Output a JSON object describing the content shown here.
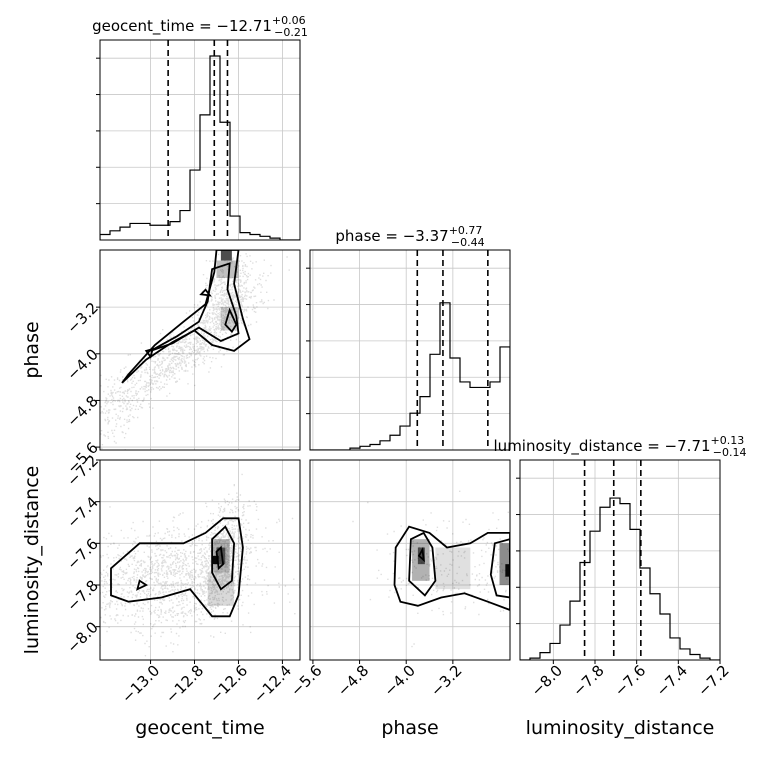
{
  "chart_data": {
    "type": "corner",
    "parameters": [
      "geocent_time",
      "phase",
      "luminosity_distance"
    ],
    "axis_labels": {
      "geocent_time": "geocent_time",
      "phase": "phase",
      "luminosity_distance": "luminosity_distance"
    },
    "ranges": {
      "geocent_time": [
        -13.23,
        -12.32
      ],
      "phase": [
        -5.65,
        -2.22
      ],
      "luminosity_distance": [
        -8.16,
        -7.2
      ]
    },
    "ticks": {
      "geocent_time": [
        -13.0,
        -12.8,
        -12.6,
        -12.4
      ],
      "phase": [
        -5.6,
        -4.8,
        -4.0,
        -3.2
      ],
      "luminosity_distance": [
        -8.0,
        -7.8,
        -7.6,
        -7.4,
        -7.2
      ]
    },
    "tick_labels": {
      "geocent_time": [
        "−13.0",
        "−12.8",
        "−12.6",
        "−12.4"
      ],
      "phase": [
        "−5.6",
        "−4.8",
        "−4.0",
        "−3.2"
      ],
      "luminosity_distance": [
        "−8.0",
        "−7.8",
        "−7.6",
        "−7.4",
        "−7.2"
      ]
    },
    "titles": [
      {
        "parameter": "geocent_time",
        "name": "geocent_time",
        "median": "−12.71",
        "plus": "+0.06",
        "minus": "−0.21"
      },
      {
        "parameter": "phase",
        "name": "phase",
        "median": "−3.37",
        "plus": "+0.77",
        "minus": "−0.44"
      },
      {
        "parameter": "luminosity_distance",
        "name": "luminosity_distance",
        "median": "−7.71",
        "plus": "+0.13",
        "minus": "−0.14"
      }
    ],
    "quantiles": {
      "geocent_time": [
        -12.92,
        -12.71,
        -12.65
      ],
      "phase": [
        -3.81,
        -3.37,
        -2.6
      ],
      "luminosity_distance": [
        -7.85,
        -7.71,
        -7.58
      ]
    },
    "histograms": {
      "geocent_time": [
        0.03,
        0.05,
        0.07,
        0.09,
        0.09,
        0.08,
        0.08,
        0.1,
        0.16,
        0.38,
        0.68,
        1.0,
        0.64,
        0.13,
        0.04,
        0.03,
        0.02,
        0.01,
        0.0,
        0.0
      ],
      "phase": [
        0.0,
        0.0,
        0.0,
        0.0,
        0.01,
        0.02,
        0.03,
        0.05,
        0.08,
        0.13,
        0.2,
        0.29,
        0.52,
        0.8,
        0.5,
        0.37,
        0.34,
        0.34,
        0.37,
        0.56
      ],
      "luminosity_distance": [
        0.0,
        0.01,
        0.04,
        0.09,
        0.19,
        0.32,
        0.53,
        0.7,
        0.83,
        0.88,
        0.85,
        0.71,
        0.5,
        0.36,
        0.25,
        0.12,
        0.06,
        0.03,
        0.01,
        0.0
      ]
    },
    "grid": true
  }
}
